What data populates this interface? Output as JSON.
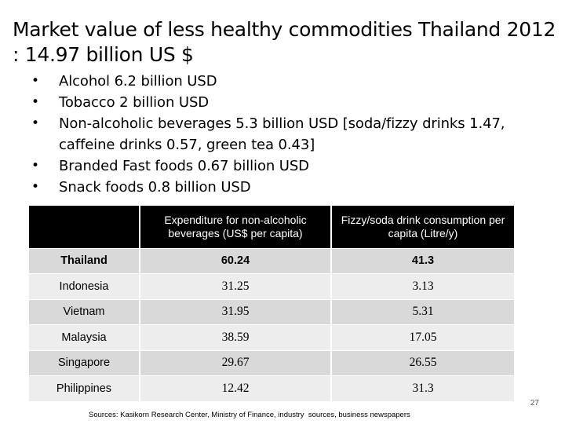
{
  "slide": {
    "title": "Market value of less healthy commodities Thailand 2012 : 14.97 billion US  $",
    "bullet_symbol": "•",
    "bullets": [
      "Alcohol 6.2 billion USD",
      "Tobacco 2 billion USD",
      "Non-alcoholic beverages 5.3 billion USD [soda/fizzy drinks 1.47, caffeine drinks 0.57, green tea 0.43]",
      "Branded Fast foods 0.67 billion USD",
      "Snack foods 0.8 billion USD"
    ],
    "table": {
      "headers": [
        "",
        "Expenditure for non-alcoholic beverages (US$ per capita)",
        "Fizzy/soda drink consumption per capita (Litre/y)"
      ],
      "rows": [
        [
          "Thailand",
          "60.24",
          "41.3"
        ],
        [
          "Indonesia",
          "31.25",
          "3.13"
        ],
        [
          "Vietnam",
          "31.95",
          "5.31"
        ],
        [
          "Malaysia",
          "38.59",
          "17.05"
        ],
        [
          "Singapore",
          "29.67",
          "26.55"
        ],
        [
          "Philippines",
          "12.42",
          "31.3"
        ]
      ]
    },
    "page_number": "27",
    "sources": "Sources: Kasikorn Research Center, Ministry of Finance, industry  sources, business newspapers"
  }
}
